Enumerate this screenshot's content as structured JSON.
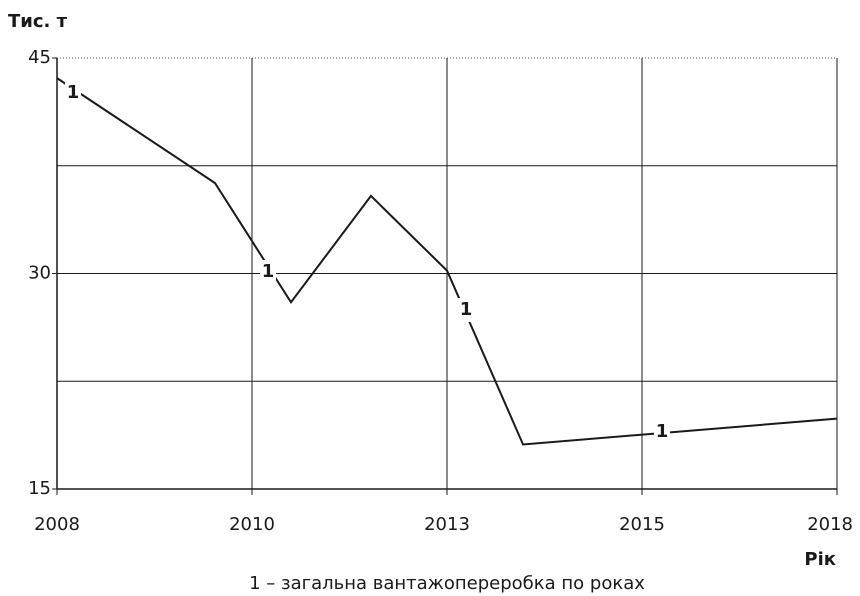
{
  "chart_data": {
    "type": "line",
    "y_label": "Тис. т",
    "x_label": "Рік",
    "caption": "1 – загальна вантажопереробка по роках",
    "x": [
      0,
      0.81,
      1.2,
      1.61,
      2.0,
      2.39,
      4.0
    ],
    "series": [
      {
        "name": "1",
        "color": "#1a1a1a",
        "values": [
          43.6,
          36.3,
          28.0,
          35.4,
          30.2,
          18.1,
          19.9
        ]
      }
    ],
    "xlim": [
      0,
      4
    ],
    "xticks": [
      {
        "value": 0,
        "label": "2008"
      },
      {
        "value": 1,
        "label": "2010"
      },
      {
        "value": 2,
        "label": "2013"
      },
      {
        "value": 3,
        "label": "2015"
      },
      {
        "value": 4,
        "label": "2018"
      }
    ],
    "ylim": [
      15,
      45
    ],
    "yticks": [
      15,
      30,
      45
    ],
    "grid": true,
    "minor_grid": true
  }
}
